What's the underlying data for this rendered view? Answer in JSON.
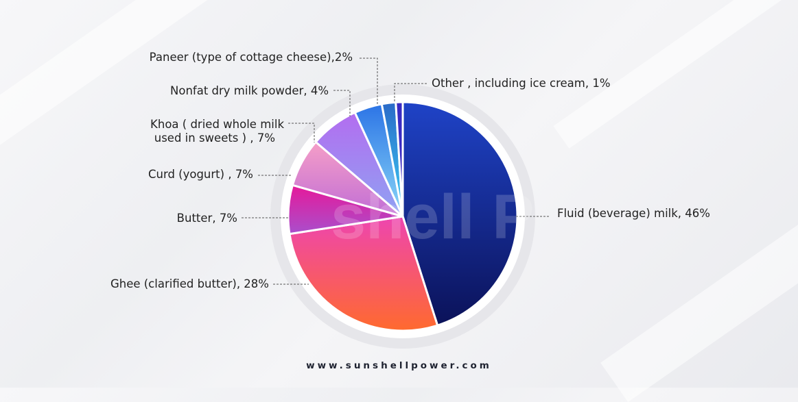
{
  "chart_data": {
    "type": "pie",
    "title": "",
    "slices": [
      {
        "label": "Fluid (beverage) milk, 46%",
        "value": 46,
        "colors": [
          "#1f43c7",
          "#0b1259"
        ]
      },
      {
        "label": "Ghee (clarified butter), 28%",
        "value": 28,
        "colors": [
          "#ee45b0",
          "#ff6a2e"
        ]
      },
      {
        "label": "Butter, 7%",
        "value": 7,
        "colors": [
          "#e6199a",
          "#a94fcc"
        ]
      },
      {
        "label": "Curd (yogurt) , 7%",
        "value": 7,
        "colors": [
          "#f59ec7",
          "#c06dd6"
        ]
      },
      {
        "label": "Khoa ( dried whole milk used in sweets ) , 7%",
        "value": 7,
        "colors": [
          "#b36df0",
          "#8fa2f2"
        ]
      },
      {
        "label": "Nonfat dry milk powder, 4%",
        "value": 4,
        "colors": [
          "#2c74e6",
          "#8ad7f7"
        ]
      },
      {
        "label": "Paneer (type of cottage cheese),2%",
        "value": 2,
        "colors": [
          "#2a6ac8",
          "#3ed0f5"
        ]
      },
      {
        "label": "Other , including ice cream, 1%",
        "value": 1,
        "colors": [
          "#3a2ac2",
          "#3a2ac2"
        ]
      }
    ]
  },
  "labels": {
    "fluid": "Fluid (beverage) milk, 46%",
    "ghee": "Ghee (clarified butter), 28%",
    "butter": "Butter, 7%",
    "curd": "Curd (yogurt) , 7%",
    "khoa_line1": "Khoa ( dried whole milk",
    "khoa_line2": "used in sweets ) , 7%",
    "nonfat": "Nonfat dry milk powder, 4%",
    "paneer": "Paneer (type of cottage cheese),2%",
    "other": "Other , including ice cream, 1%"
  },
  "watermark": "shell P",
  "website": "www.sunshellpower.com"
}
